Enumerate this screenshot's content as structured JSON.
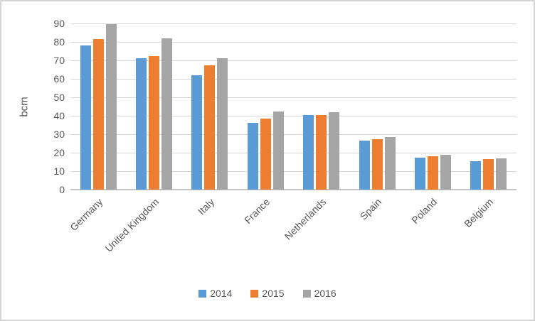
{
  "chart_data": {
    "type": "bar",
    "title": "",
    "xlabel": "",
    "ylabel": "bcm",
    "ylim": [
      0,
      90
    ],
    "ytick_step": 10,
    "grid": true,
    "legend_position": "bottom",
    "categories": [
      "Germany",
      "United Kingdom",
      "Italy",
      "France",
      "Netherlands",
      "Spain",
      "Poland",
      "Belgium"
    ],
    "series": [
      {
        "name": "2014",
        "color": "#5B9BD5",
        "values": [
          78,
          71,
          62,
          36,
          40.5,
          26.5,
          17.5,
          15.5
        ]
      },
      {
        "name": "2015",
        "color": "#ED7D31",
        "values": [
          81.5,
          72.5,
          67.5,
          38.5,
          40.5,
          27.5,
          18,
          16.5
        ]
      },
      {
        "name": "2016",
        "color": "#A5A5A5",
        "values": [
          89.5,
          82,
          71,
          42.5,
          42,
          28.5,
          19,
          17
        ]
      }
    ],
    "colors": {
      "gridline": "#d9d9d9",
      "axis_line": "#c6c6c6",
      "tick_text": "#595959"
    }
  }
}
